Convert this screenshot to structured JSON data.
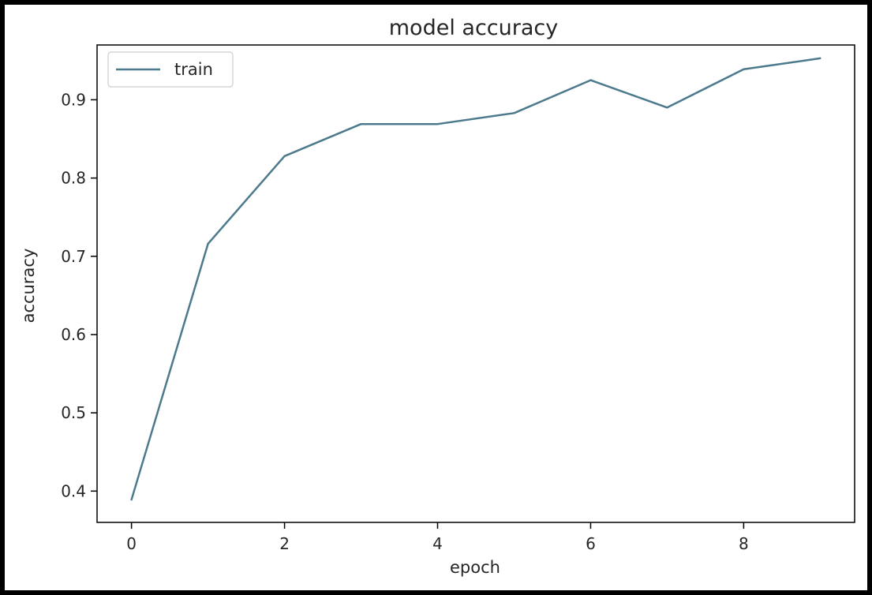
{
  "chart_data": {
    "type": "line",
    "title": "model accuracy",
    "xlabel": "epoch",
    "ylabel": "accuracy",
    "xlim": [
      -0.45,
      9.45
    ],
    "ylim": [
      0.36,
      0.97
    ],
    "xticks": [
      0,
      2,
      4,
      6,
      8
    ],
    "yticks": [
      0.4,
      0.5,
      0.6,
      0.7,
      0.8,
      0.9
    ],
    "x": [
      0,
      1,
      2,
      3,
      4,
      5,
      6,
      7,
      8,
      9
    ],
    "series": [
      {
        "name": "train",
        "color": "#4c7a8c",
        "values": [
          0.389,
          0.716,
          0.828,
          0.869,
          0.869,
          0.883,
          0.925,
          0.89,
          0.939,
          0.953
        ]
      }
    ],
    "grid": false,
    "legend_position": "upper-left"
  }
}
